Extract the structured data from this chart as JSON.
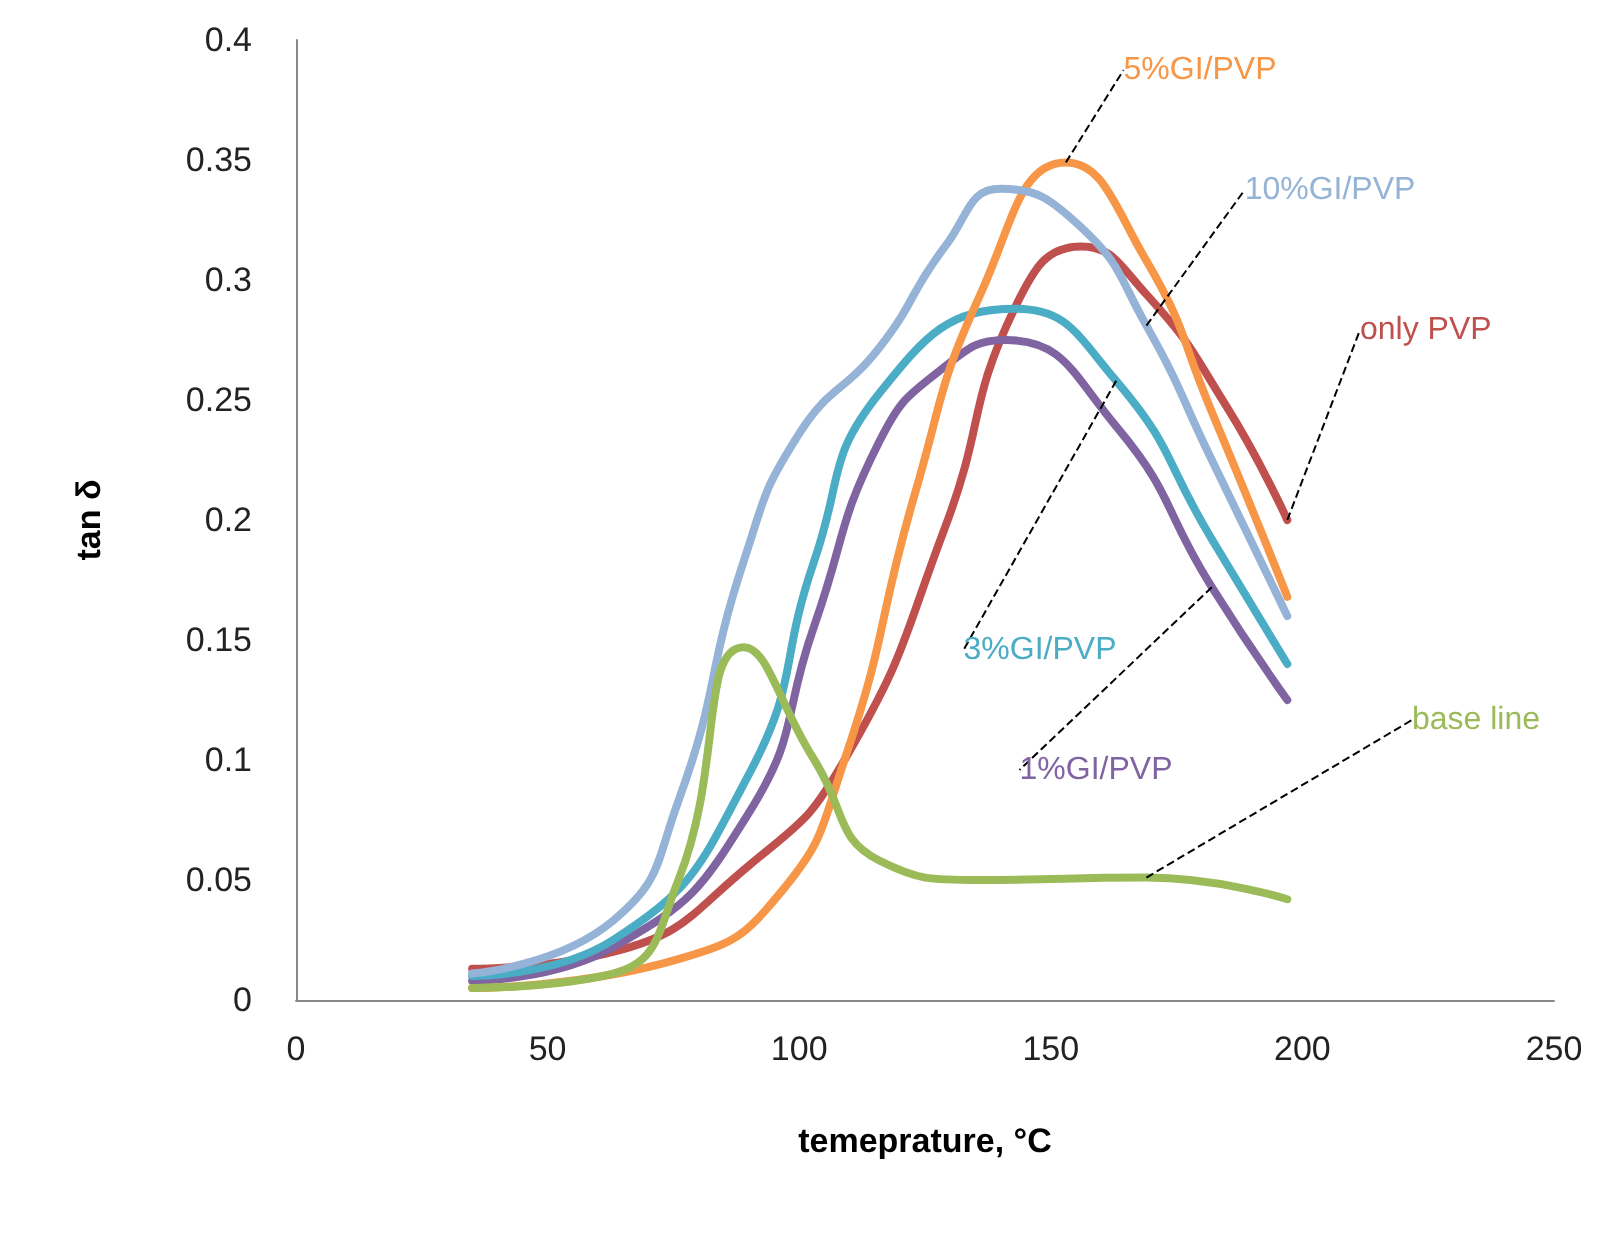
{
  "chart_data": {
    "type": "line",
    "xlabel": "temeprature, °C",
    "ylabel": "tan δ",
    "xlim": [
      0,
      250
    ],
    "xticks": [
      0,
      50,
      100,
      150,
      200,
      250
    ],
    "ylim": [
      0,
      0.4
    ],
    "yticks": [
      0,
      0.05,
      0.1,
      0.15,
      0.2,
      0.25,
      0.3,
      0.35,
      0.4
    ],
    "grid": false,
    "legend": false,
    "marker": "none",
    "line_style": "solid",
    "series": [
      {
        "name": "only PVP",
        "color": "#c0504d",
        "x": [
          35,
          63,
          90,
          109,
          129,
          143,
          156,
          169,
          185,
          197
        ],
        "values": [
          0.013,
          0.02,
          0.056,
          0.1,
          0.197,
          0.289,
          0.314,
          0.294,
          0.247,
          0.2
        ]
      },
      {
        "name": "1%GI/PVP",
        "color": "#8064a2",
        "x": [
          35,
          63,
          90,
          103,
          116,
          129,
          141,
          163,
          182,
          197
        ],
        "values": [
          0.008,
          0.022,
          0.078,
          0.156,
          0.233,
          0.264,
          0.275,
          0.239,
          0.172,
          0.125
        ]
      },
      {
        "name": "3%GI/PVP",
        "color": "#4bacc6",
        "x": [
          35,
          63,
          90,
          103,
          116,
          143,
          163,
          182,
          197
        ],
        "values": [
          0.01,
          0.025,
          0.094,
          0.183,
          0.253,
          0.288,
          0.258,
          0.192,
          0.14
        ]
      },
      {
        "name": "5%GI/PVP",
        "color": "#f79646",
        "x": [
          35,
          76,
          96,
          109,
          123,
          136,
          153,
          169,
          182,
          197
        ],
        "values": [
          0.005,
          0.017,
          0.044,
          0.1,
          0.211,
          0.294,
          0.349,
          0.308,
          0.245,
          0.168
        ]
      },
      {
        "name": "10%GI/PVP",
        "color": "#95b3d7",
        "x": [
          35,
          63,
          76,
          89,
          100,
          116,
          129,
          140,
          156,
          169,
          182,
          197
        ],
        "values": [
          0.011,
          0.033,
          0.083,
          0.183,
          0.236,
          0.272,
          0.314,
          0.338,
          0.322,
          0.281,
          0.225,
          0.16
        ]
      },
      {
        "name": "base line",
        "color": "#9bbb59",
        "x": [
          35,
          63,
          76,
          89,
          103,
          116,
          136,
          169,
          197
        ],
        "values": [
          0.005,
          0.011,
          0.05,
          0.147,
          0.1,
          0.058,
          0.05,
          0.051,
          0.042
        ]
      }
    ]
  }
}
